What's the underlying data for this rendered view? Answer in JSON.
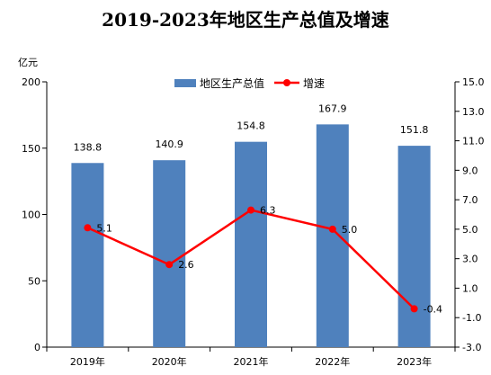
{
  "chart_data": {
    "type": "bar",
    "title": "2019-2023年地区生产总值及增速",
    "y_unit_label": "亿元",
    "categories": [
      "2019年",
      "2020年",
      "2021年",
      "2022年",
      "2023年"
    ],
    "series": [
      {
        "name": "地区生产总值",
        "type": "bar",
        "axis": "left",
        "values": [
          138.8,
          140.9,
          154.8,
          167.9,
          151.8
        ],
        "labels": [
          "138.8",
          "140.9",
          "154.8",
          "167.9",
          "151.8"
        ],
        "color": "#4F81BD"
      },
      {
        "name": "增速",
        "type": "line",
        "axis": "right",
        "values": [
          5.1,
          2.6,
          6.3,
          5.0,
          -0.4
        ],
        "labels": [
          "5.1",
          "2.6",
          "6.3",
          "5.0",
          "-0.4"
        ],
        "color": "#FF0000"
      }
    ],
    "y_left": {
      "range": [
        0,
        200
      ],
      "ticks": [
        "0",
        "50",
        "100",
        "150",
        "200"
      ]
    },
    "y_right": {
      "range": [
        -3.0,
        15.0
      ],
      "ticks": [
        "-3.0",
        "-1.0",
        "1.0",
        "3.0",
        "5.0",
        "7.0",
        "9.0",
        "11.0",
        "13.0",
        "15.0"
      ]
    },
    "grid": false,
    "legend_position": "top-center"
  }
}
